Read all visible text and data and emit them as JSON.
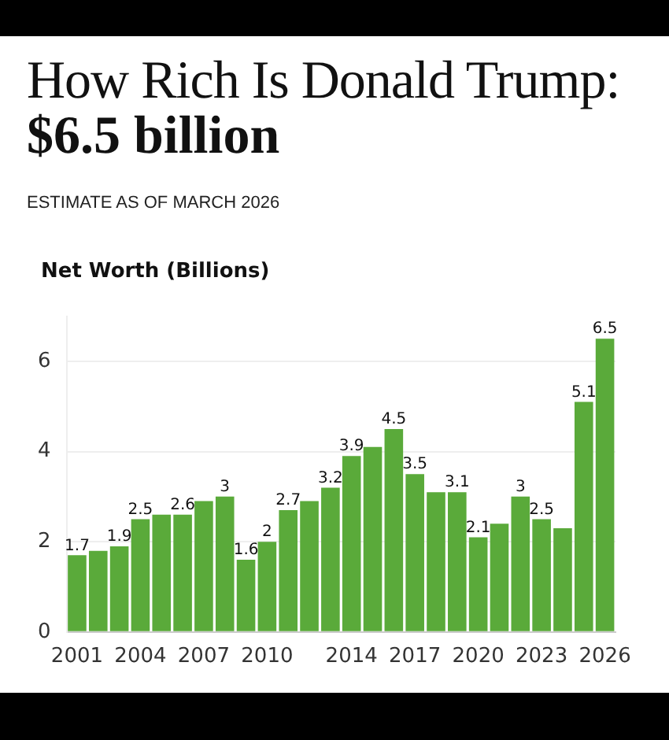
{
  "chart_data": {
    "type": "bar",
    "title": "How Rich Is Donald Trump:",
    "subtitle": "$6.5 billion",
    "annotations": [
      "ESTIMATE AS OF MARCH 2026"
    ],
    "ylabel": "Net Worth (Billions)",
    "categories": [
      "2001",
      null,
      null,
      "2004",
      null,
      null,
      "2007",
      null,
      null,
      "2010",
      null,
      null,
      null,
      "2014",
      null,
      null,
      "2017",
      null,
      null,
      "2020",
      null,
      null,
      "2023",
      null,
      null,
      "2026"
    ],
    "values": [
      1.7,
      1.8,
      1.9,
      2.5,
      2.6,
      2.6,
      2.9,
      3,
      1.6,
      2,
      2.7,
      2.9,
      3.2,
      3.9,
      4.1,
      4.5,
      3.5,
      3.1,
      3.1,
      2.1,
      2.4,
      3,
      2.5,
      2.3,
      5.1,
      6.5
    ],
    "value_labels": [
      "1.7",
      null,
      "1.9",
      "2.5",
      null,
      "2.6",
      null,
      "3",
      "1.6",
      "2",
      "2.7",
      null,
      "3.2",
      "3.9",
      null,
      "4.5",
      "3.5",
      null,
      "3.1",
      "2.1",
      null,
      "3",
      "2.5",
      null,
      "5.1",
      "6.5"
    ],
    "color": "#5aaa3a",
    "ylim": [
      0,
      7
    ],
    "yticks": [
      0,
      2,
      4,
      6
    ],
    "grid": "y",
    "legend": false
  }
}
